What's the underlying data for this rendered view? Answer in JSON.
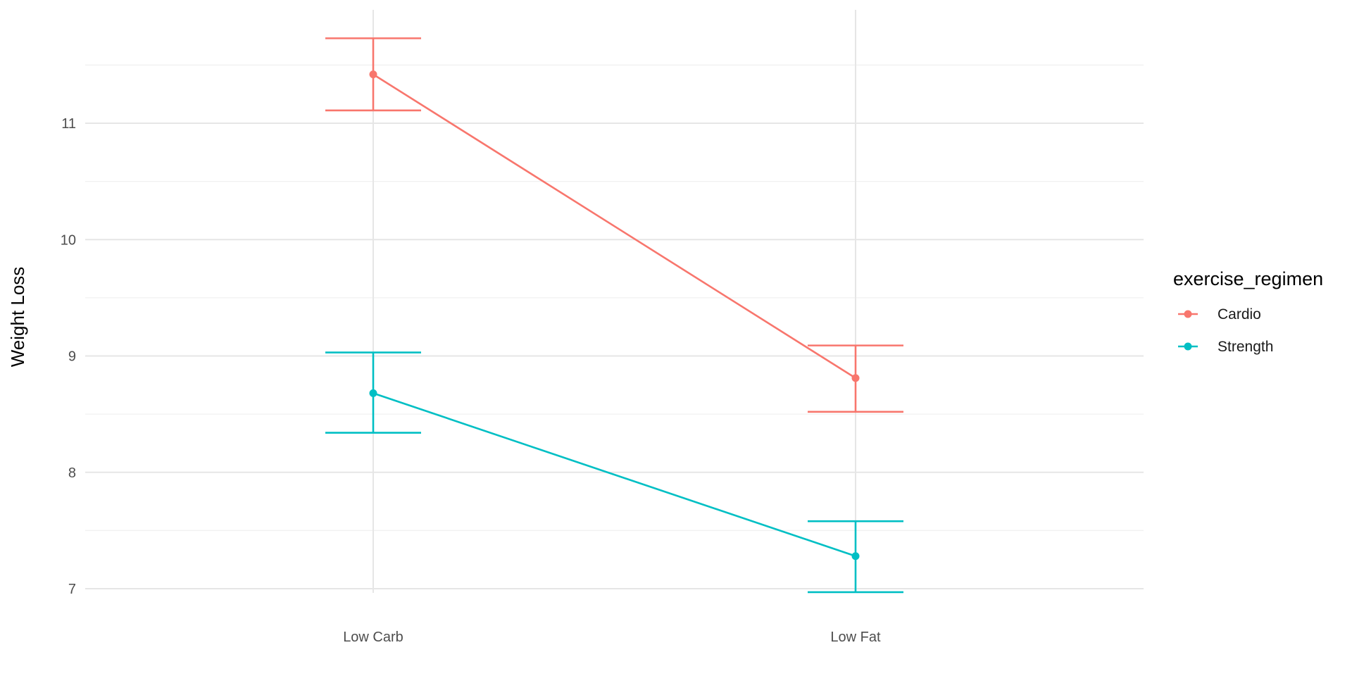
{
  "chart_data": {
    "type": "line",
    "categories": [
      "Low Carb",
      "Low Fat"
    ],
    "xlabel": "",
    "ylabel": "Weight Loss",
    "ylim": [
      6.85,
      11.75
    ],
    "yticks": [
      7,
      8,
      9,
      10,
      11
    ],
    "grid": true,
    "legend": {
      "title": "exercise_regimen",
      "position": "right"
    },
    "series": [
      {
        "name": "Cardio",
        "color": "#F8766D",
        "values": [
          11.42,
          8.81
        ],
        "error_low": [
          11.11,
          8.52
        ],
        "error_high": [
          11.73,
          9.09
        ]
      },
      {
        "name": "Strength",
        "color": "#00BFC4",
        "values": [
          8.68,
          7.28
        ],
        "error_low": [
          8.34,
          6.97
        ],
        "error_high": [
          9.03,
          7.58
        ]
      }
    ]
  }
}
